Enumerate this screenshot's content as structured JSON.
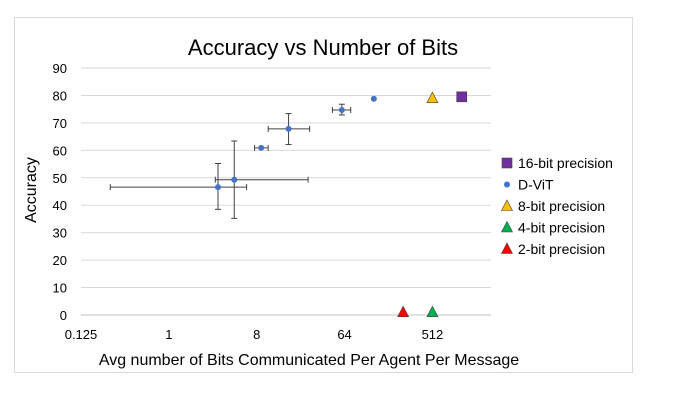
{
  "chart_data": {
    "type": "scatter",
    "title": "Accuracy vs Number of Bits",
    "xlabel": "Avg number of Bits Communicated Per Agent Per Message",
    "ylabel": "Accuracy",
    "x_scale": "log2",
    "xlim": [
      0.125,
      2048
    ],
    "ylim": [
      0,
      90
    ],
    "x_ticks": [
      0.125,
      1,
      8,
      64,
      512
    ],
    "x_tick_labels": [
      "0.125",
      "1",
      "8",
      "64",
      "512"
    ],
    "y_ticks": [
      0,
      10,
      20,
      30,
      40,
      50,
      60,
      70,
      80,
      90
    ],
    "grid": "horizontal",
    "legend_position": "right",
    "series": [
      {
        "name": "16-bit precision",
        "marker": "square",
        "color": "#7030a0",
        "points": [
          {
            "x": 1024,
            "y": 79.5
          }
        ]
      },
      {
        "name": "D-ViT",
        "marker": "circle",
        "color": "#4472c4",
        "points": [
          {
            "x": 3.2,
            "y": 46.6,
            "x_err": [
              0.25,
              6.3
            ],
            "y_err": [
              38.5,
              55.2
            ]
          },
          {
            "x": 4.7,
            "y": 49.3,
            "x_err": [
              3.0,
              27
            ],
            "y_err": [
              35.2,
              63.4
            ]
          },
          {
            "x": 8.9,
            "y": 60.9,
            "x_err": [
              7.6,
              10.5
            ],
            "y_err": [
              60.9,
              60.9
            ]
          },
          {
            "x": 17,
            "y": 67.8,
            "x_err": [
              10.5,
              28
            ],
            "y_err": [
              62.1,
              73.4
            ]
          },
          {
            "x": 60,
            "y": 74.7,
            "x_err": [
              48,
              74
            ],
            "y_err": [
              72.9,
              76.8
            ]
          },
          {
            "x": 128,
            "y": 78.8
          }
        ]
      },
      {
        "name": "8-bit precision",
        "marker": "triangle",
        "color": "#ffc000",
        "points": [
          {
            "x": 512,
            "y": 79
          }
        ]
      },
      {
        "name": "4-bit precision",
        "marker": "triangle",
        "color": "#00b050",
        "points": [
          {
            "x": 512,
            "y": 1
          }
        ]
      },
      {
        "name": "2-bit precision",
        "marker": "triangle",
        "color": "#ff0000",
        "points": [
          {
            "x": 256,
            "y": 1
          }
        ]
      }
    ]
  }
}
